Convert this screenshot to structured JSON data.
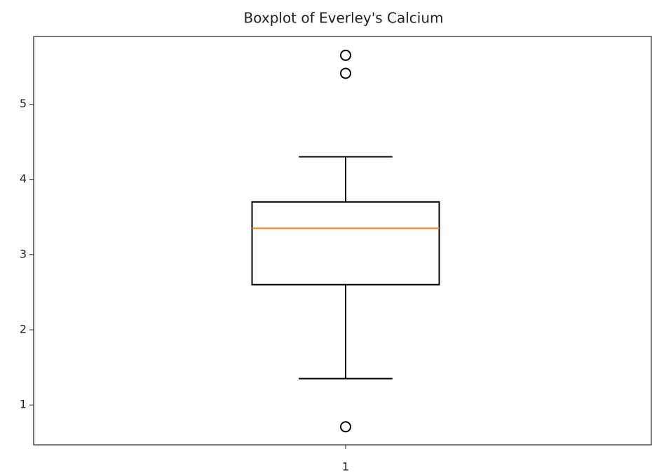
{
  "chart_data": {
    "type": "box",
    "title": "Boxplot of Everley's Calcium",
    "categories": [
      "1"
    ],
    "boxes": [
      {
        "whislo": 1.35,
        "q1": 2.6,
        "median": 3.35,
        "q3": 3.7,
        "whishi": 4.3,
        "fliers": [
          5.65,
          5.41,
          0.71
        ]
      }
    ],
    "box_color": "#000000",
    "median_color": "#ff7f0e",
    "xlim": [
      0.5,
      1.5
    ],
    "ylim": [
      0.47,
      5.9
    ],
    "yticks": [
      1,
      2,
      3,
      4,
      5
    ],
    "grid": false
  }
}
